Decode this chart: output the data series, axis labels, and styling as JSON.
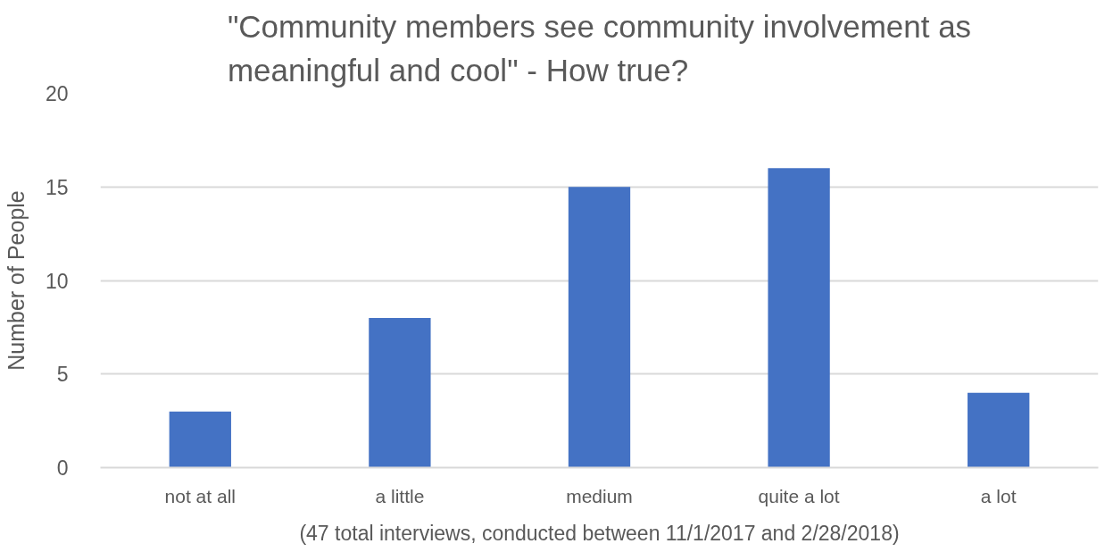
{
  "chart_data": {
    "type": "bar",
    "title": "\"Community members see community involvement as meaningful and cool\" - How true?",
    "xlabel": "(47 total interviews, conducted between 11/1/2017 and 2/28/2018)",
    "ylabel": "Number of People",
    "categories": [
      "not at all",
      "a little",
      "medium",
      "quite a lot",
      "a lot"
    ],
    "values": [
      3,
      8,
      15,
      16,
      4
    ],
    "color": "#4472c4",
    "ylim": [
      0,
      20
    ],
    "yticks": [
      0,
      5,
      10,
      15,
      20
    ],
    "grid": "y"
  }
}
